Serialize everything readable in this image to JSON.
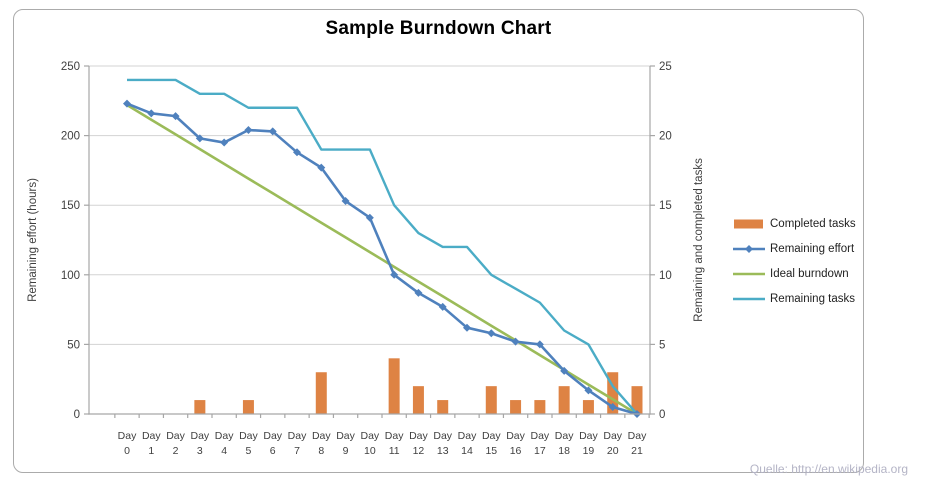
{
  "watermark": "Quelle: http://en.wikipedia.org",
  "chart_data": {
    "type": "combo-bar-line",
    "title": "Sample Burndown Chart",
    "categories": [
      "Day 0",
      "Day 1",
      "Day 2",
      "Day 3",
      "Day 4",
      "Day 5",
      "Day 6",
      "Day 7",
      "Day 8",
      "Day 9",
      "Day 10",
      "Day 11",
      "Day 12",
      "Day 13",
      "Day 14",
      "Day 15",
      "Day 16",
      "Day 17",
      "Day 18",
      "Day 19",
      "Day 20",
      "Day 21"
    ],
    "left_axis": {
      "label": "Remaining effort (hours)",
      "min": 0,
      "max": 250,
      "tick_interval": 50,
      "ticks": [
        0,
        50,
        100,
        150,
        200,
        250
      ]
    },
    "right_axis": {
      "label": "Remaining and  completed tasks",
      "min": 0,
      "max": 25,
      "tick_interval": 5,
      "ticks": [
        0,
        5,
        10,
        15,
        20,
        25
      ]
    },
    "grid": true,
    "legend_position": "right",
    "series": [
      {
        "name": "Completed tasks",
        "type": "bar",
        "axis": "right",
        "color": "#de8344",
        "values": [
          0,
          0,
          0,
          1,
          0,
          1,
          0,
          0,
          3,
          0,
          0,
          4,
          2,
          1,
          0,
          2,
          1,
          1,
          2,
          1,
          3,
          2
        ]
      },
      {
        "name": "Remaining effort",
        "type": "line",
        "marker": "diamond",
        "axis": "left",
        "color": "#4f81bd",
        "values": [
          223,
          216,
          214,
          198,
          195,
          204,
          203,
          188,
          177,
          153,
          141,
          100,
          87,
          77,
          62,
          58,
          52,
          50,
          31,
          17,
          5,
          0
        ]
      },
      {
        "name": "Ideal burndown",
        "type": "line",
        "axis": "left",
        "color": "#9bbb59",
        "values": [
          222,
          211.4,
          200.9,
          190.3,
          179.7,
          169.1,
          158.6,
          148.0,
          137.4,
          126.9,
          116.3,
          105.7,
          95.1,
          84.6,
          74.0,
          63.4,
          52.9,
          42.3,
          31.7,
          21.1,
          10.6,
          0
        ]
      },
      {
        "name": "Remaining tasks",
        "type": "line",
        "axis": "right",
        "color": "#4bacc6",
        "values": [
          24,
          24,
          24,
          23,
          23,
          22,
          22,
          22,
          19,
          19,
          19,
          15,
          13,
          12,
          12,
          10,
          9,
          8,
          6,
          5,
          2,
          0
        ]
      }
    ],
    "style": {
      "gridline_color": "#d3d3d3",
      "axis_line_color": "#a6a6a6",
      "tick_label_color": "#404040",
      "axis_title_color": "#3f3f3f",
      "watermark_color": "#b4b4c6"
    }
  }
}
